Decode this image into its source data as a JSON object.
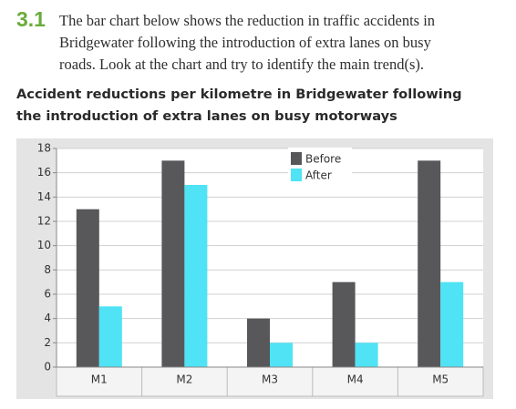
{
  "exercise": {
    "number": "3.1",
    "lines": [
      "The bar chart below shows the reduction in traffic accidents in",
      "Bridgewater following the introduction of extra lanes on busy",
      "roads. Look at the chart and try to identify the main trend(s)."
    ]
  },
  "chart_data": {
    "type": "bar",
    "title": "Accident reductions per kilometre in Bridgewater following the introduction of extra lanes on busy motorways",
    "categories": [
      "M1",
      "M2",
      "M3",
      "M4",
      "M5"
    ],
    "series": [
      {
        "name": "Before",
        "color": "#58585a",
        "values": [
          13,
          17,
          4,
          7,
          17
        ]
      },
      {
        "name": "After",
        "color": "#4fe3f5",
        "values": [
          5,
          15,
          2,
          2,
          7
        ]
      }
    ],
    "ylim": [
      0,
      18
    ],
    "yticks": [
      0,
      2,
      4,
      6,
      8,
      10,
      12,
      14,
      16,
      18
    ],
    "grid": true,
    "legend": "top-right"
  }
}
